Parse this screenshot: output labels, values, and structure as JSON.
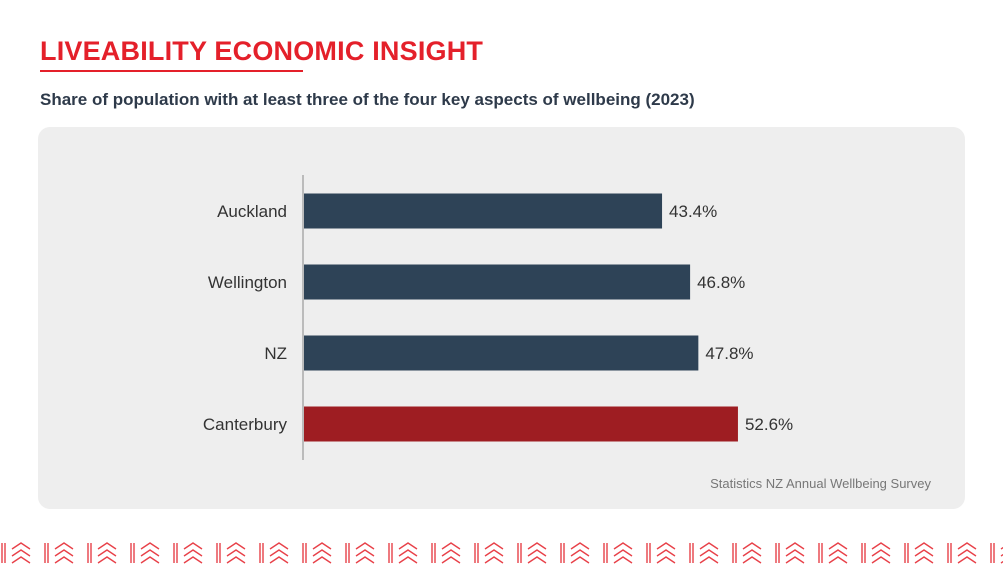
{
  "header": {
    "title": "LIVEABILITY ECONOMIC INSIGHT",
    "subtitle": "Share of population with at least three of the four key aspects of wellbeing (2023)"
  },
  "source": "Statistics NZ Annual Wellbeing Survey",
  "colors": {
    "accent": "#e4202a",
    "bar_default": "#2e4357",
    "bar_highlight": "#9e1d22",
    "panel": "#eeeeee"
  },
  "chart_data": {
    "type": "bar",
    "orientation": "horizontal",
    "categories": [
      "Auckland",
      "Wellington",
      "NZ",
      "Canterbury"
    ],
    "values": [
      43.4,
      46.8,
      47.8,
      52.6
    ],
    "value_labels": [
      "43.4%",
      "46.8%",
      "47.8%",
      "52.6%"
    ],
    "highlight": "Canterbury",
    "unit": "%",
    "xlim": [
      0,
      100
    ],
    "grid": false
  }
}
